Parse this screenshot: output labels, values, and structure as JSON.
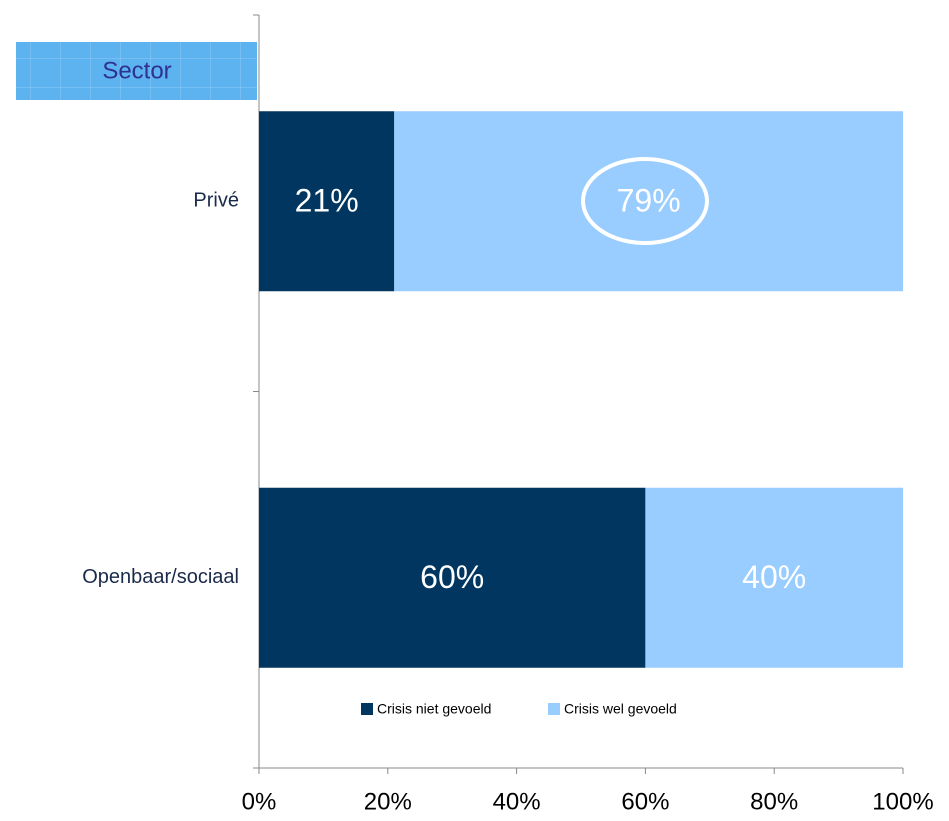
{
  "chart_data": {
    "type": "stacked_barh",
    "annotation": "Sector",
    "categories": [
      "Privé",
      "Openbaar/sociaal"
    ],
    "series": [
      {
        "name": "Crisis niet gevoeld",
        "color": "#00365f",
        "values": [
          21,
          60
        ],
        "value_labels": [
          "21%",
          "60%"
        ]
      },
      {
        "name": "Crisis wel gevoeld",
        "color": "#99ccff",
        "values": [
          79,
          40
        ],
        "value_labels": [
          "79%",
          "40%"
        ]
      }
    ],
    "xlim": [
      0,
      100
    ],
    "xticks": [
      {
        "value": 0,
        "label": "0%"
      },
      {
        "value": 20,
        "label": "20%"
      },
      {
        "value": 40,
        "label": "40%"
      },
      {
        "value": 60,
        "label": "60%"
      },
      {
        "value": 80,
        "label": "80%"
      },
      {
        "value": 100,
        "label": "100%"
      }
    ],
    "legend": "bottom"
  }
}
